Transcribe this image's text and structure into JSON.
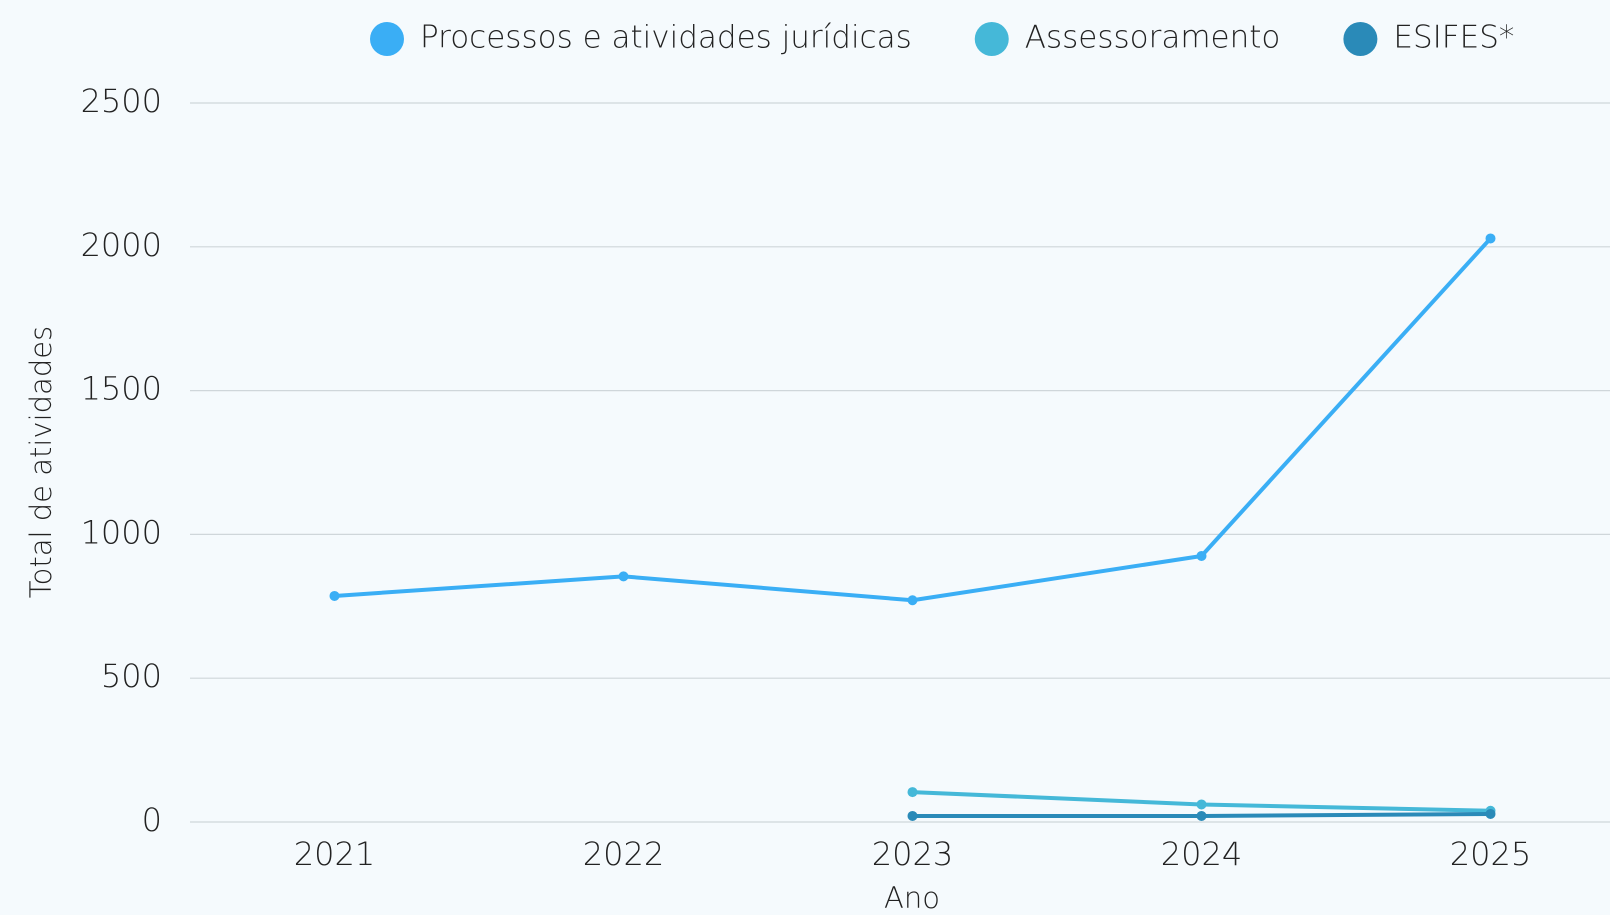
{
  "chart_data": {
    "type": "line",
    "categories": [
      "2021",
      "2022",
      "2023",
      "2024",
      "2025"
    ],
    "series": [
      {
        "name": "Processos e atividades jurídicas",
        "color": "#3aaef5",
        "values": [
          786,
          854,
          771,
          925,
          2029
        ]
      },
      {
        "name": "Assessoramento",
        "color": "#45b8d8",
        "values": [
          null,
          null,
          104,
          61,
          39
        ]
      },
      {
        "name": "ESIFES*",
        "color": "#2a8ab8",
        "values": [
          null,
          null,
          21,
          21,
          28
        ]
      }
    ],
    "ylim": [
      0,
      2500
    ],
    "yticks": [
      0,
      500,
      1000,
      1500,
      2000,
      2500
    ],
    "grid": true,
    "y_label": "Total de atividades",
    "x_label": "Ano",
    "legend": "top"
  }
}
